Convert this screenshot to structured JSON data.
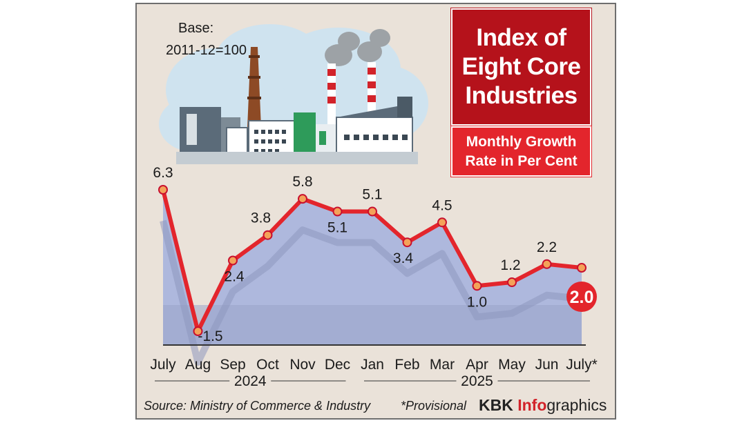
{
  "base": {
    "line1": "Base:",
    "line2": "2011-12=100"
  },
  "title": {
    "line1": "Index of",
    "line2": "Eight Core",
    "line3": "Industries"
  },
  "subtitle": {
    "line1": "Monthly Growth",
    "line2": "Rate in Per Cent"
  },
  "footer": {
    "source": "Source: Ministry of Commerce & Industry",
    "provisional": "*Provisional",
    "brand_part1": "KBK ",
    "brand_part2": "Info",
    "brand_part3": "graphics"
  },
  "colors": {
    "line": "#e3252c",
    "area": "#a7b4dd",
    "area_bottom": "#9aa4c9",
    "title_bg": "#b5121b",
    "subtitle_bg": "#e3252c",
    "background": "#eae2d9"
  },
  "chart_data": {
    "type": "line",
    "title": "Index of Eight Core Industries",
    "subtitle": "Monthly Growth Rate in Per Cent",
    "categories": [
      "July",
      "Aug",
      "Sep",
      "Oct",
      "Nov",
      "Dec",
      "Jan",
      "Feb",
      "Mar",
      "Apr",
      "May",
      "Jun",
      "July*"
    ],
    "values": [
      6.3,
      -1.5,
      2.4,
      3.8,
      5.8,
      5.1,
      5.1,
      3.4,
      4.5,
      1.0,
      1.2,
      2.2,
      2.0
    ],
    "labels": [
      "6.3",
      "-1.5",
      "2.4",
      "3.8",
      "5.8",
      "5.1",
      "5.1",
      "3.4",
      "4.5",
      "1.0",
      "1.2",
      "2.2",
      "2.0"
    ],
    "year_groups": [
      {
        "label": "2024",
        "from": 0,
        "to": 5
      },
      {
        "label": "2025",
        "from": 6,
        "to": 12
      }
    ],
    "highlight_last": true,
    "ylim": [
      -2,
      7
    ],
    "grid": false,
    "legend": "none"
  }
}
